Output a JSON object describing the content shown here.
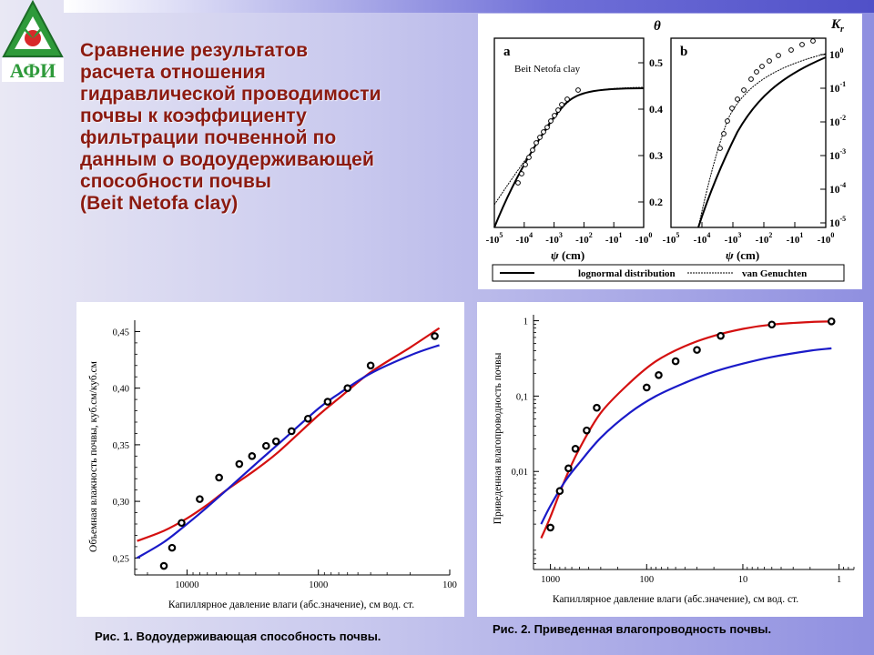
{
  "logo": {
    "text": "АФИ",
    "icon": "afi-logo"
  },
  "title_lines": [
    "Сравнение результатов",
    "расчета отношения",
    "гидравлической проводимости",
    "почвы к коэффициенту",
    "фильтрации почвенной по",
    "данным о водоудерживающей",
    "способности почвы",
    "(Beit Netofa clay)"
  ],
  "colors": {
    "title": "#8b1a10",
    "model_red": "#d41010",
    "model_blue": "#1a1ac8",
    "points": "#000000"
  },
  "top_figure": {
    "panel_a": {
      "letter": "a",
      "inset_label": "Beit Netofa clay",
      "right_axis_symbol": "θ",
      "right_ticks": [
        "0.5",
        "0.4",
        "0.3",
        "0.2"
      ]
    },
    "panel_b": {
      "letter": "b",
      "right_axis_symbol": "K",
      "right_axis_subscript": "r",
      "right_ticks": [
        {
          "base": "10",
          "exp": "0"
        },
        {
          "base": "10",
          "exp": "-1"
        },
        {
          "base": "10",
          "exp": "-2"
        },
        {
          "base": "10",
          "exp": "-3"
        },
        {
          "base": "10",
          "exp": "-4"
        },
        {
          "base": "10",
          "exp": "-5"
        }
      ]
    },
    "x_ticks": [
      {
        "base": "-10",
        "exp": "5"
      },
      {
        "base": "-10",
        "exp": "4"
      },
      {
        "base": "-10",
        "exp": "3"
      },
      {
        "base": "-10",
        "exp": "2"
      },
      {
        "base": "-10",
        "exp": "1"
      },
      {
        "base": "-10",
        "exp": "0"
      }
    ],
    "x_label_symbol": "ψ",
    "x_label_unit": " (cm)",
    "legend": [
      "lognormal distribution",
      "van Genuchten"
    ]
  },
  "chart_data": [
    {
      "type": "scatter",
      "xlabel": "Капиллярное давление влаги (абс.значение), см вод. ст.",
      "ylabel": "Объемная влажность почвы, куб.см/куб.см",
      "x_scale": "log-reversed",
      "xlim": [
        25000,
        100
      ],
      "ylim": [
        0.235,
        0.46
      ],
      "x_ticks": [
        10000,
        1000,
        100
      ],
      "x_tick_labels": [
        "10000",
        "1000",
        "100"
      ],
      "y_ticks": [
        0.25,
        0.3,
        0.35,
        0.4,
        0.45
      ],
      "y_tick_labels": [
        "0,25",
        "0,30",
        "0,35",
        "0,40",
        "0,45"
      ],
      "points": {
        "x": [
          15000,
          13000,
          11000,
          8000,
          5700,
          4000,
          3200,
          2500,
          2100,
          1600,
          1200,
          850,
          600,
          400,
          130
        ],
        "y": [
          0.243,
          0.259,
          0.281,
          0.302,
          0.321,
          0.333,
          0.34,
          0.349,
          0.353,
          0.362,
          0.373,
          0.388,
          0.4,
          0.42,
          0.446
        ]
      },
      "series": [
        {
          "color": "#d41010",
          "x": [
            24000,
            15000,
            10000,
            7000,
            5000,
            3000,
            2000,
            1000,
            700,
            400,
            200,
            120
          ],
          "y": [
            0.265,
            0.274,
            0.285,
            0.297,
            0.31,
            0.328,
            0.344,
            0.376,
            0.391,
            0.414,
            0.436,
            0.453
          ]
        },
        {
          "color": "#1a1ac8",
          "x": [
            24000,
            15000,
            10000,
            7000,
            5000,
            3000,
            2000,
            1000,
            700,
            400,
            200,
            120
          ],
          "y": [
            0.25,
            0.264,
            0.28,
            0.295,
            0.31,
            0.333,
            0.351,
            0.382,
            0.395,
            0.413,
            0.429,
            0.438
          ]
        }
      ],
      "grid": false
    },
    {
      "type": "scatter",
      "xlabel": "Капиллярное давление влаги (абс.значение), см вод. ст.",
      "ylabel": "Приведенная влагопроводность почвы",
      "x_scale": "log-reversed",
      "y_scale": "log",
      "xlim": [
        1500,
        0.7
      ],
      "ylim": [
        0.0005,
        1.2
      ],
      "x_ticks": [
        1000,
        100,
        10,
        1
      ],
      "x_tick_labels": [
        "1000",
        "100",
        "10",
        "1"
      ],
      "y_ticks": [
        1,
        0.1,
        0.01
      ],
      "y_tick_labels": [
        "1",
        "0,1",
        "0,01"
      ],
      "points": {
        "x": [
          1000,
          800,
          650,
          550,
          420,
          330,
          100,
          75,
          50,
          30,
          17,
          5,
          1.2
        ],
        "y": [
          0.0018,
          0.0055,
          0.011,
          0.02,
          0.035,
          0.07,
          0.13,
          0.19,
          0.29,
          0.41,
          0.63,
          0.89,
          0.98
        ]
      },
      "series": [
        {
          "color": "#d41010",
          "x": [
            1250,
            1000,
            700,
            500,
            300,
            150,
            80,
            40,
            20,
            10,
            5,
            2,
            1.2
          ],
          "y": [
            0.0013,
            0.0025,
            0.008,
            0.02,
            0.06,
            0.15,
            0.29,
            0.46,
            0.63,
            0.78,
            0.89,
            0.96,
            0.98
          ]
        },
        {
          "color": "#1a1ac8",
          "x": [
            1250,
            1000,
            700,
            500,
            300,
            150,
            80,
            40,
            20,
            10,
            5,
            2,
            1.2
          ],
          "y": [
            0.002,
            0.0035,
            0.0075,
            0.013,
            0.028,
            0.06,
            0.1,
            0.15,
            0.21,
            0.27,
            0.33,
            0.4,
            0.43
          ]
        }
      ],
      "grid": false
    }
  ],
  "captions": {
    "fig1": "Рис. 1. Водоудерживающая способность почвы.",
    "fig2": "Рис. 2. Приведенная влагопроводность почвы."
  }
}
